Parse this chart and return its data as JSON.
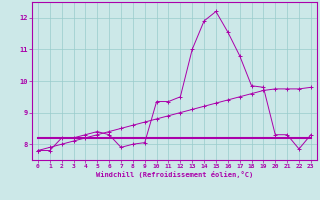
{
  "xlabel": "Windchill (Refroidissement éolien,°C)",
  "xlim": [
    -0.5,
    23.5
  ],
  "ylim": [
    7.5,
    12.5
  ],
  "yticks": [
    8,
    9,
    10,
    11,
    12
  ],
  "xticks": [
    0,
    1,
    2,
    3,
    4,
    5,
    6,
    7,
    8,
    9,
    10,
    11,
    12,
    13,
    14,
    15,
    16,
    17,
    18,
    19,
    20,
    21,
    22,
    23
  ],
  "bg_color": "#cce8e8",
  "line_color": "#aa00aa",
  "grid_color": "#99cccc",
  "line1_x": [
    0,
    1,
    2,
    3,
    4,
    5,
    6,
    7,
    8,
    9,
    10,
    11,
    12,
    13,
    14,
    15,
    16,
    17,
    18,
    19,
    20,
    21,
    22,
    23
  ],
  "line1_y": [
    7.8,
    7.8,
    8.2,
    8.2,
    8.3,
    8.4,
    8.3,
    7.9,
    8.0,
    8.05,
    9.35,
    9.35,
    9.5,
    11.0,
    11.9,
    12.2,
    11.55,
    10.8,
    9.85,
    9.8,
    8.3,
    8.3,
    7.85,
    8.3
  ],
  "line2_x": [
    0,
    1,
    2,
    3,
    4,
    5,
    6,
    7,
    8,
    9,
    10,
    11,
    12,
    13,
    14,
    15,
    16,
    17,
    18,
    19,
    20,
    21,
    22,
    23
  ],
  "line2_y": [
    7.8,
    7.9,
    8.0,
    8.1,
    8.2,
    8.3,
    8.4,
    8.5,
    8.6,
    8.7,
    8.8,
    8.9,
    9.0,
    9.1,
    9.2,
    9.3,
    9.4,
    9.5,
    9.6,
    9.7,
    9.75,
    9.75,
    9.75,
    9.8
  ],
  "line3_x": [
    0,
    1,
    2,
    3,
    4,
    5,
    6,
    7,
    8,
    9,
    10,
    11,
    12,
    13,
    14,
    15,
    16,
    17,
    18,
    19,
    20,
    21,
    22,
    23
  ],
  "line3_y": [
    8.2,
    8.2,
    8.2,
    8.2,
    8.2,
    8.2,
    8.2,
    8.2,
    8.2,
    8.2,
    8.2,
    8.2,
    8.2,
    8.2,
    8.2,
    8.2,
    8.2,
    8.2,
    8.2,
    8.2,
    8.2,
    8.2,
    8.2,
    8.2
  ]
}
